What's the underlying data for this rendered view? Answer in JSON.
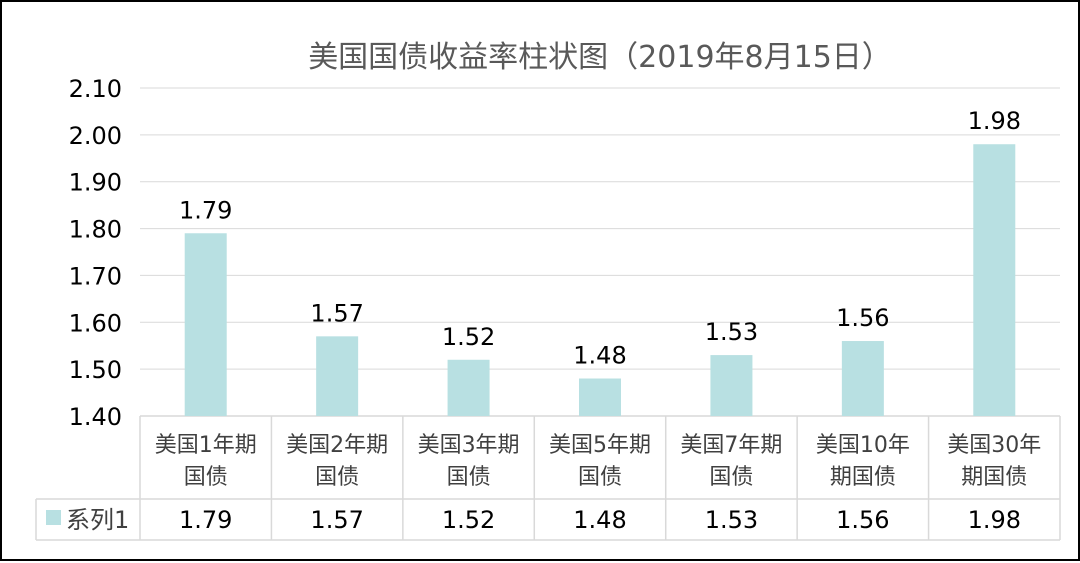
{
  "chart_data": {
    "type": "bar",
    "title": "美国国债收益率柱状图（2019年8月15日）",
    "categories": [
      [
        "美国1年期",
        "国债"
      ],
      [
        "美国2年期",
        "国债"
      ],
      [
        "美国3年期",
        "国债"
      ],
      [
        "美国5年期",
        "国债"
      ],
      [
        "美国7年期",
        "国债"
      ],
      [
        "美国10年",
        "期国债"
      ],
      [
        "美国30年",
        "期国债"
      ]
    ],
    "series": [
      {
        "name": "系列1",
        "values": [
          1.79,
          1.57,
          1.52,
          1.48,
          1.53,
          1.56,
          1.98
        ],
        "value_labels": [
          "1.79",
          "1.57",
          "1.52",
          "1.48",
          "1.53",
          "1.56",
          "1.98"
        ],
        "color": "#b8e0e2"
      }
    ],
    "ylim": [
      1.4,
      2.1
    ],
    "yticks": [
      "1.40",
      "1.50",
      "1.60",
      "1.70",
      "1.80",
      "1.90",
      "2.00",
      "2.10"
    ],
    "grid": true,
    "legend": "data-table",
    "gridline_color": "#d9d9d9",
    "table_border_color": "#d9d9d9"
  }
}
